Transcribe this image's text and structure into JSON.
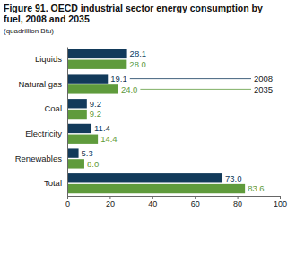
{
  "chart_data": {
    "type": "bar",
    "orientation": "horizontal",
    "title": "Figure 91. OECD industrial sector energy consumption by fuel, 2008 and 2035",
    "subtitle": "(quadrillion Btu)",
    "categories": [
      "Liquids",
      "Natural gas",
      "Coal",
      "Electricity",
      "Renewables",
      "Total"
    ],
    "series": [
      {
        "name": "2008",
        "color": "#123a5a",
        "values": [
          28.1,
          19.1,
          9.2,
          11.4,
          5.3,
          73.0
        ],
        "value_labels": [
          "28.1",
          "19.1",
          "9.2",
          "11.4",
          "5.3",
          "73.0"
        ]
      },
      {
        "name": "2035",
        "color": "#5f9b3c",
        "values": [
          28.0,
          24.0,
          9.2,
          14.4,
          8.0,
          83.6
        ],
        "value_labels": [
          "28.0",
          "24.0",
          "9.2",
          "14.4",
          "8.0",
          "83.6"
        ]
      }
    ],
    "xlim": [
      0,
      100
    ],
    "xticks": [
      0,
      20,
      40,
      60,
      80,
      100
    ],
    "grid": false,
    "data_labels": true,
    "legend": "right"
  }
}
